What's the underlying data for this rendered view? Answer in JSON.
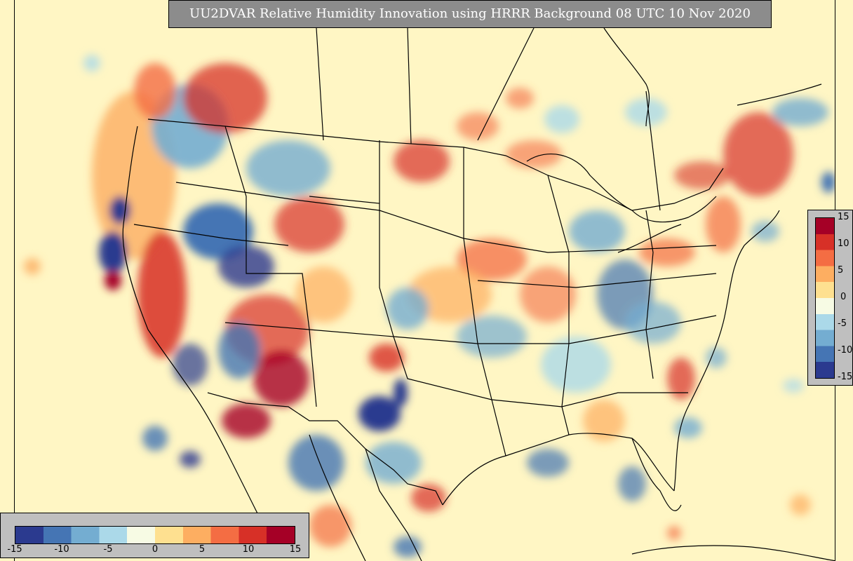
{
  "title": "UU2DVAR Relative Humidity Innovation using HRRR Background 08 UTC 10 Nov 2020",
  "colorbar": {
    "min": -15,
    "max": 15,
    "tick_labels": [
      "15",
      "10",
      "5",
      "0",
      "-5",
      "-10",
      "-15"
    ],
    "bottom_tick_labels": [
      "-15",
      "-10",
      "-5",
      "0",
      "5",
      "10",
      "15"
    ],
    "colors": [
      "#2b3a8f",
      "#4575b4",
      "#74add1",
      "#abd9e9",
      "#f7fbe4",
      "#fee090",
      "#fdae61",
      "#f46d43",
      "#d73027",
      "#a50026"
    ]
  },
  "map": {
    "projection": "Lambert Conformal (CONUS)",
    "background_color": "#fff6c4",
    "features": [
      "coastlines",
      "country borders",
      "state borders",
      "provinces"
    ]
  }
}
